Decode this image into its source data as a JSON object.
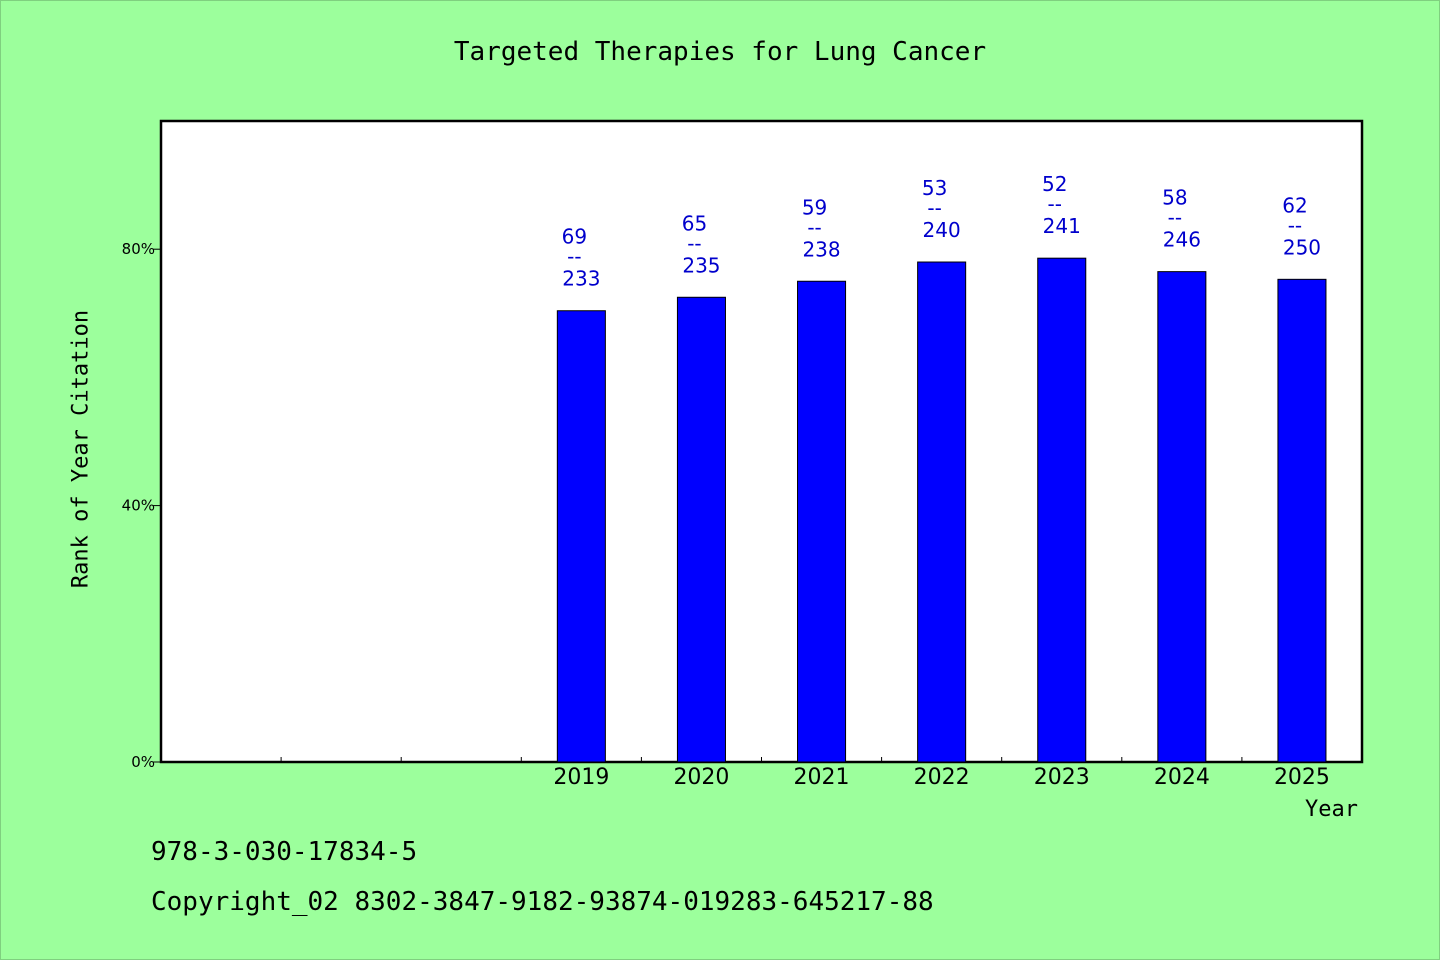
{
  "chart_data": {
    "type": "bar",
    "title": "Targeted Therapies for Lung Cancer",
    "xlabel": "Year",
    "ylabel": "Rank of Year Citation",
    "categories": [
      "",
      "",
      "",
      "2019",
      "2020",
      "2021",
      "2022",
      "2023",
      "2024",
      "2025"
    ],
    "values": [
      null,
      null,
      null,
      70.4,
      72.5,
      75.0,
      78.0,
      78.6,
      76.5,
      75.3
    ],
    "data_labels": [
      null,
      null,
      null,
      {
        "top": "69",
        "sep": "--",
        "bottom": "233"
      },
      {
        "top": "65",
        "sep": "--",
        "bottom": "235"
      },
      {
        "top": "59",
        "sep": "--",
        "bottom": "238"
      },
      {
        "top": "53",
        "sep": "--",
        "bottom": "240"
      },
      {
        "top": "52",
        "sep": "--",
        "bottom": "241"
      },
      {
        "top": "58",
        "sep": "--",
        "bottom": "246"
      },
      {
        "top": "62",
        "sep": "--",
        "bottom": "250"
      }
    ],
    "yticks": [
      {
        "value": 0,
        "label": "0%"
      },
      {
        "value": 40,
        "label": "40%"
      },
      {
        "value": 80,
        "label": "80%"
      }
    ],
    "ylim": [
      0,
      100
    ],
    "grid": false,
    "legend": "none",
    "colors": {
      "bar": "#0000ff",
      "label": "#0000cc",
      "background": "#9cff9c",
      "plot": "#ffffff"
    }
  },
  "footer": {
    "isbn": "978-3-030-17834-5",
    "copyright": "Copyright_02 8302-3847-9182-93874-019283-645217-88"
  }
}
